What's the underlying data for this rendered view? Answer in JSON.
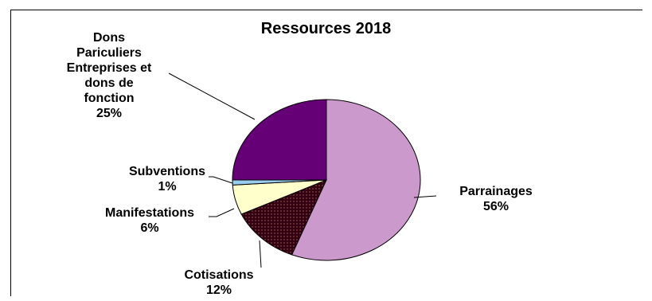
{
  "chart_data": {
    "type": "pie",
    "title": "Ressources 2018",
    "slices": [
      {
        "label": "Parrainages",
        "value": 56,
        "value_label": "56%",
        "color": "#cc99cc",
        "pattern": "none"
      },
      {
        "label": "Cotisations",
        "value": 12,
        "value_label": "12%",
        "color": "#330011",
        "pattern": "dots"
      },
      {
        "label": "Manifestations",
        "value": 6,
        "value_label": "6%",
        "color": "#ffffcc",
        "pattern": "none"
      },
      {
        "label": "Subventions",
        "value": 1,
        "value_label": "1%",
        "color": "#99ccee",
        "pattern": "none"
      },
      {
        "label": "Dons Pariculiers Entreprises et dons de fonction",
        "label_lines": [
          "Dons",
          "Pariculiers",
          "Entreprises et",
          "dons de",
          "fonction"
        ],
        "value": 25,
        "value_label": "25%",
        "color": "#660077",
        "pattern": "none"
      }
    ],
    "legend": "none",
    "start_angle": "12 o'clock",
    "direction": "clockwise"
  }
}
